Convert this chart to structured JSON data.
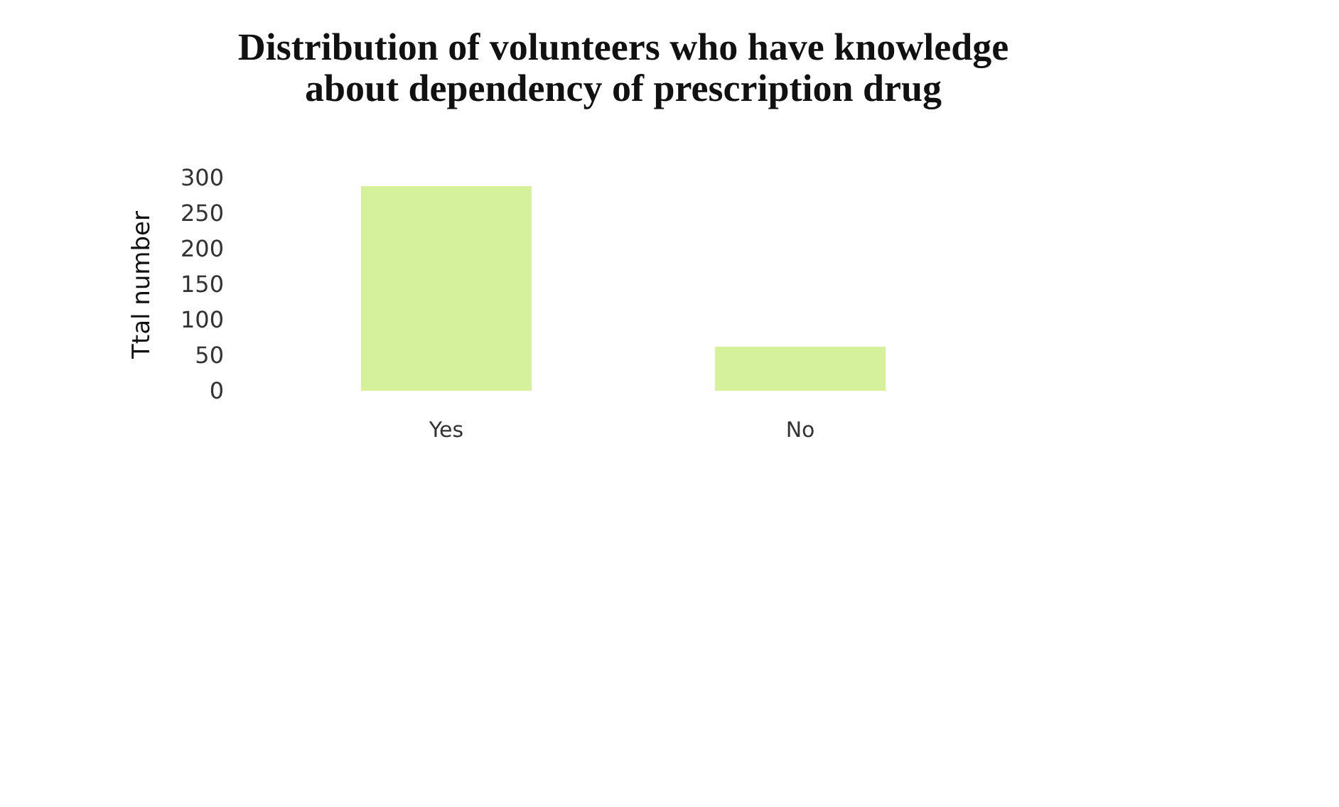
{
  "chart_data": {
    "type": "bar",
    "title": [
      "Distribution of volunteers who have knowledge",
      "about dependency of prescription drug"
    ],
    "ylabel": "Ttal number",
    "categories": [
      "Yes",
      "No"
    ],
    "values": [
      288,
      62
    ],
    "color": "#d5f19b",
    "ylim": [
      0,
      300
    ],
    "yticks": [
      0,
      50,
      100,
      150,
      200,
      250,
      300
    ],
    "grid": false
  }
}
